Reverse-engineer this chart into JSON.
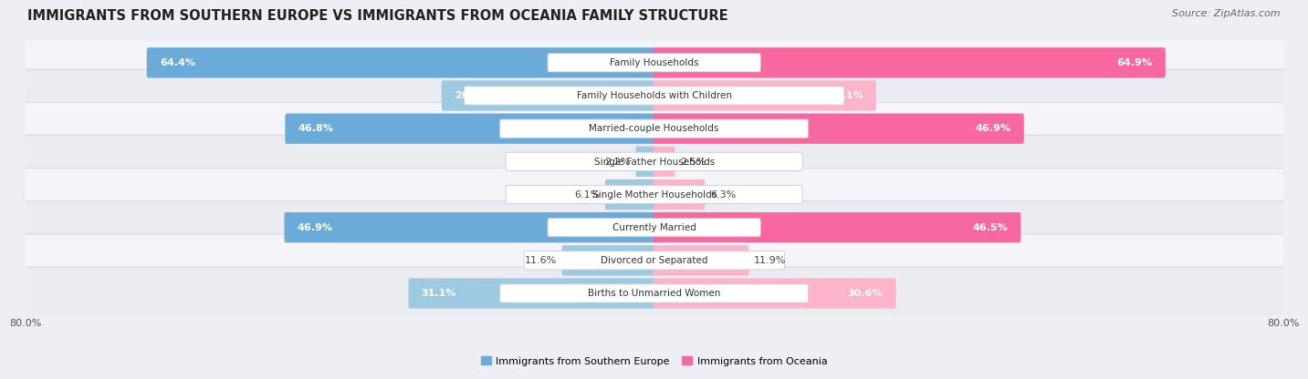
{
  "title": "IMMIGRANTS FROM SOUTHERN EUROPE VS IMMIGRANTS FROM OCEANIA FAMILY STRUCTURE",
  "source": "Source: ZipAtlas.com",
  "categories": [
    "Family Households",
    "Family Households with Children",
    "Married-couple Households",
    "Single Father Households",
    "Single Mother Households",
    "Currently Married",
    "Divorced or Separated",
    "Births to Unmarried Women"
  ],
  "left_values": [
    64.4,
    26.9,
    46.8,
    2.2,
    6.1,
    46.9,
    11.6,
    31.1
  ],
  "right_values": [
    64.9,
    28.1,
    46.9,
    2.5,
    6.3,
    46.5,
    11.9,
    30.6
  ],
  "left_colors": [
    "#6aabda",
    "#9ecae1",
    "#6aabda",
    "#9ecae1",
    "#9ecae1",
    "#6aabda",
    "#9ecae1",
    "#9ecae1"
  ],
  "right_colors": [
    "#f768a1",
    "#fbb4c9",
    "#f768a1",
    "#fbb4c9",
    "#fbb4c9",
    "#f768a1",
    "#fbb4c9",
    "#fbb4c9"
  ],
  "axis_max": 80.0,
  "left_label": "Immigrants from Southern Europe",
  "right_label": "Immigrants from Oceania",
  "bg_color": "#eeeff4",
  "row_bg_even": "#f7f7fa",
  "row_bg_odd": "#ebebf2",
  "title_fontsize": 10.5,
  "source_fontsize": 8,
  "bar_height": 0.62,
  "value_fontsize": 8,
  "cat_fontsize": 7.5,
  "legend_fontsize": 8
}
